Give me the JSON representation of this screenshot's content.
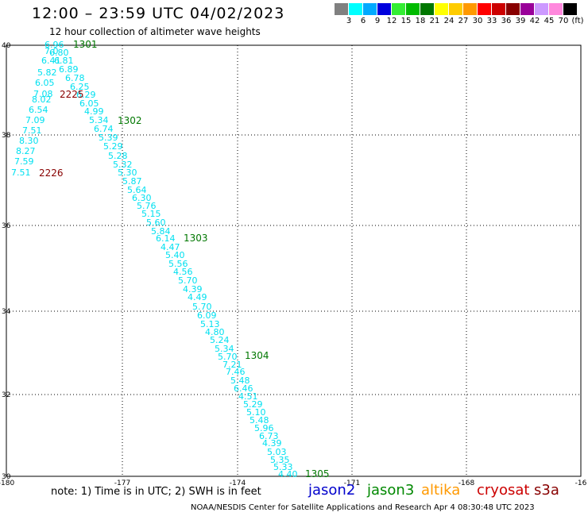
{
  "title": "12:00 – 23:59 UTC 04/02/2023",
  "subtitle": "12 hour collection of altimeter wave heights",
  "colorbar": {
    "colors": [
      "#808080",
      "#00ffff",
      "#00aaff",
      "#0000dd",
      "#33ee33",
      "#00bb00",
      "#007700",
      "#ffff00",
      "#ffcc00",
      "#ff9900",
      "#ff0000",
      "#cc0000",
      "#880000",
      "#990099",
      "#cc99ff",
      "#ff88dd",
      "#000000"
    ],
    "labels": [
      "3",
      "6",
      "9",
      "12",
      "15",
      "18",
      "21",
      "24",
      "27",
      "30",
      "33",
      "36",
      "39",
      "42",
      "45",
      "70",
      "(ft)"
    ]
  },
  "axes": {
    "x_ticks": [
      "-180",
      "-177",
      "-174",
      "-171",
      "-168",
      "-16"
    ],
    "y_ticks": [
      "40",
      "38",
      "36",
      "34",
      "32",
      "30"
    ]
  },
  "swh_color": "#00e0f0",
  "swh_values": [
    "6.96",
    "7.0",
    "6.80",
    "6.41",
    "6.81",
    "5.82",
    "6.89",
    "6.05",
    "6.78",
    "7.08",
    "6.25",
    "8.02",
    "6.29",
    "6.54",
    "6.05",
    "7.09",
    "4.99",
    "7.51",
    "5.34",
    "8.30",
    "6.74",
    "8.27",
    "5.39",
    "7.59",
    "5.29",
    "7.51",
    "5.28",
    "5.32",
    "5.30",
    "5.87",
    "5.64",
    "6.30",
    "5.76",
    "5.15",
    "5.60",
    "5.84",
    "6.14",
    "4.47",
    "5.40",
    "5.56",
    "4.56",
    "5.70",
    "4.39",
    "4.49",
    "5.70",
    "6.09",
    "5.13",
    "4.80",
    "5.24",
    "5.34",
    "5.70",
    "7.21",
    "7.46",
    "5.48",
    "6.46",
    "4.51",
    "5.29",
    "5.10",
    "5.48",
    "5.96",
    "6.73",
    "4.39",
    "5.03",
    "5.35",
    "5.33",
    "4.40"
  ],
  "track_labels": [
    {
      "text": "1301",
      "color": "#007700"
    },
    {
      "text": "2225",
      "color": "#880000"
    },
    {
      "text": "1302",
      "color": "#007700"
    },
    {
      "text": "2226",
      "color": "#880000"
    },
    {
      "text": "1303",
      "color": "#007700"
    },
    {
      "text": "1304",
      "color": "#007700"
    },
    {
      "text": "1305",
      "color": "#007700"
    }
  ],
  "note": "note:  1) Time is in UTC;  2) SWH is in feet",
  "satellites": [
    {
      "name": "jason2",
      "color": "#0000cc"
    },
    {
      "name": "jason3",
      "color": "#008800"
    },
    {
      "name": "altika",
      "color": "#ff9900"
    },
    {
      "name": "cryosat",
      "color": "#cc0000"
    },
    {
      "name": "s3a",
      "color": "#880000"
    }
  ],
  "credit": "NOAA/NESDIS Center for Satellite Applications and Research    Apr  4 08:30:48 UTC 2023"
}
